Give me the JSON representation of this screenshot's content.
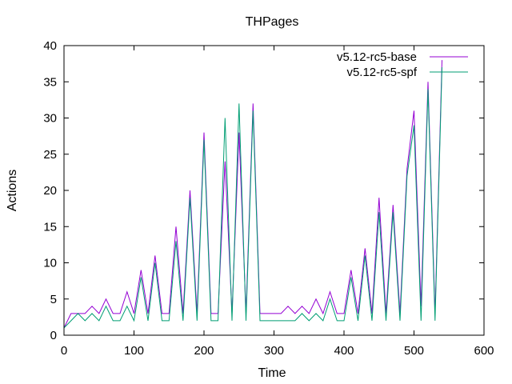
{
  "chart_data": {
    "type": "line",
    "title": "THPages",
    "xlabel": "Time",
    "ylabel": "Actions",
    "xlim": [
      0,
      600
    ],
    "ylim": [
      0,
      40
    ],
    "xticks": [
      0,
      100,
      200,
      300,
      400,
      500,
      600
    ],
    "yticks": [
      0,
      5,
      10,
      15,
      20,
      25,
      30,
      35,
      40
    ],
    "grid": false,
    "legend_position": "top-right",
    "series": [
      {
        "name": "v5.12-rc5-base",
        "color": "#9400d3",
        "x": [
          0,
          10,
          20,
          30,
          40,
          50,
          60,
          70,
          80,
          90,
          100,
          110,
          120,
          130,
          140,
          150,
          160,
          170,
          180,
          190,
          200,
          210,
          220,
          230,
          240,
          250,
          260,
          270,
          280,
          290,
          300,
          310,
          320,
          330,
          340,
          350,
          360,
          370,
          380,
          390,
          400,
          410,
          420,
          430,
          440,
          450,
          460,
          470,
          480,
          490,
          500,
          510,
          520,
          530,
          540
        ],
        "y": [
          1,
          3,
          3,
          3,
          4,
          3,
          5,
          3,
          3,
          6,
          3,
          9,
          3,
          11,
          3,
          3,
          15,
          3,
          20,
          3,
          28,
          3,
          3,
          24,
          3,
          28,
          3,
          32,
          3,
          3,
          3,
          3,
          4,
          3,
          4,
          3,
          5,
          3,
          6,
          3,
          3,
          9,
          3,
          12,
          3,
          19,
          3,
          18,
          3,
          23,
          31,
          4,
          35,
          3,
          38
        ]
      },
      {
        "name": "v5.12-rc5-spf",
        "color": "#009e73",
        "x": [
          0,
          10,
          20,
          30,
          40,
          50,
          60,
          70,
          80,
          90,
          100,
          110,
          120,
          130,
          140,
          150,
          160,
          170,
          180,
          190,
          200,
          210,
          220,
          230,
          240,
          250,
          260,
          270,
          280,
          290,
          300,
          310,
          320,
          330,
          340,
          350,
          360,
          370,
          380,
          390,
          400,
          410,
          420,
          430,
          440,
          450,
          460,
          470,
          480,
          490,
          500,
          510,
          520,
          530,
          540
        ],
        "y": [
          1,
          2,
          3,
          2,
          3,
          2,
          4,
          2,
          2,
          4,
          2,
          8,
          2,
          10,
          2,
          2,
          13,
          2,
          19,
          2,
          27,
          2,
          2,
          30,
          2,
          32,
          2,
          31,
          2,
          2,
          2,
          2,
          2,
          2,
          3,
          2,
          3,
          2,
          5,
          2,
          2,
          8,
          2,
          11,
          2,
          17,
          2,
          17,
          2,
          22,
          29,
          2,
          34,
          2,
          37
        ]
      }
    ]
  }
}
